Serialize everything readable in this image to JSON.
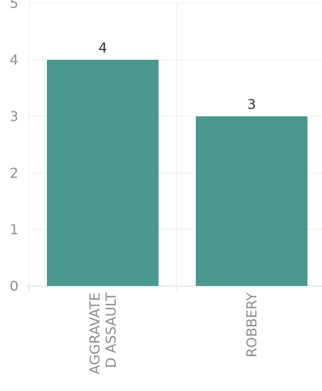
{
  "chart_data": {
    "type": "bar",
    "categories": [
      [
        "AGGRAVATE",
        "D ASSAULT"
      ],
      [
        "ROBBERY"
      ]
    ],
    "values": [
      4,
      3
    ],
    "ylim": [
      0,
      5
    ],
    "yticks": [
      "0",
      "1",
      "2",
      "3",
      "4",
      "5"
    ],
    "data_labels": [
      "4",
      "3"
    ],
    "bar_color": "#4a9990",
    "grid": true,
    "title": "",
    "xlabel": "",
    "ylabel": ""
  }
}
